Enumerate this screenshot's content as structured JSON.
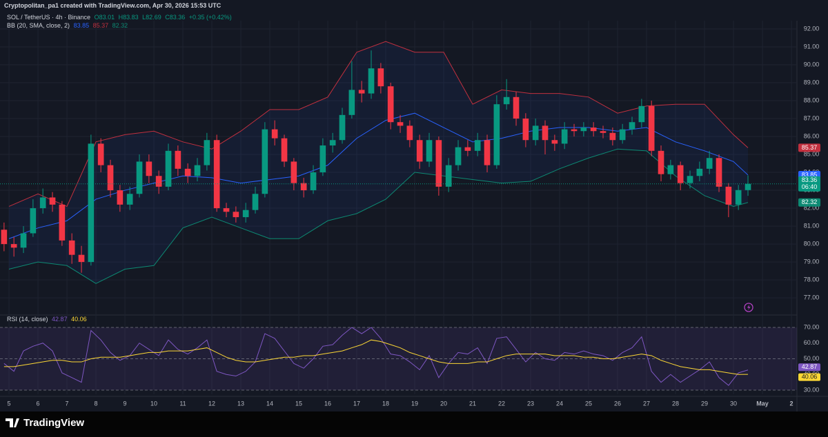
{
  "header": {
    "credit": "Cryptopolitan_pa1 created with TradingView.com, Apr 30, 2026 15:53 UTC"
  },
  "legend": {
    "symbol": "SOL / TetherUS · 4h · Binance",
    "open": "O83.01",
    "high": "H83.83",
    "low": "L82.69",
    "close": "C83.36",
    "change": "+0.35 (+0.42%)"
  },
  "footer": {
    "brand": "TradingView"
  },
  "chart_data": [
    {
      "type": "candlestick",
      "up_color": "#089981",
      "down_color": "#f23645",
      "countdown": "06:40",
      "xlim": [
        4.69,
        32.19
      ],
      "ylim": [
        76.12,
        92.46
      ],
      "xticks": [
        5,
        6,
        7,
        8,
        9,
        10,
        11,
        12,
        13,
        14,
        15,
        16,
        17,
        18,
        19,
        20,
        21,
        22,
        23,
        24,
        25,
        26,
        27,
        28,
        29,
        30,
        {
          "value": 31,
          "label": "May"
        },
        {
          "value": 32,
          "label": "2"
        }
      ],
      "yticks": [
        {
          "value": 77,
          "label": "77.00"
        },
        {
          "value": 78,
          "label": "78.00"
        },
        {
          "value": 79,
          "label": "79.00"
        },
        {
          "value": 80,
          "label": "80.00"
        },
        {
          "value": 81,
          "label": "81.00"
        },
        {
          "value": 82,
          "label": "82.00"
        },
        {
          "value": 83,
          "label": "83.00"
        },
        {
          "value": 84,
          "label": "84.00"
        },
        {
          "value": 85,
          "label": "85.00"
        },
        {
          "value": 86,
          "label": "86.00"
        },
        {
          "value": 87,
          "label": "87.00"
        },
        {
          "value": 88,
          "label": "88.00"
        },
        {
          "value": 89,
          "label": "89.00"
        },
        {
          "value": 90,
          "label": "90.00"
        },
        {
          "value": 91,
          "label": "91.00"
        },
        {
          "value": 92,
          "label": "92.00"
        }
      ],
      "grid": true,
      "x": [
        4.83,
        5.17,
        5.5,
        5.83,
        6.17,
        6.5,
        6.83,
        7.17,
        7.5,
        7.83,
        8.17,
        8.5,
        8.83,
        9.17,
        9.5,
        9.83,
        10.17,
        10.5,
        10.83,
        11.17,
        11.5,
        11.83,
        12.17,
        12.5,
        12.83,
        13.17,
        13.5,
        13.83,
        14.17,
        14.5,
        14.83,
        15.17,
        15.5,
        15.83,
        16.17,
        16.5,
        16.83,
        17.17,
        17.5,
        17.83,
        18.17,
        18.5,
        18.83,
        19.17,
        19.5,
        19.83,
        20.17,
        20.5,
        20.83,
        21.17,
        21.5,
        21.83,
        22.17,
        22.5,
        22.83,
        23.17,
        23.5,
        23.83,
        24.17,
        24.5,
        24.83,
        25.17,
        25.5,
        25.83,
        26.17,
        26.5,
        26.83,
        27.17,
        27.5,
        27.83,
        28.17,
        28.5,
        28.83,
        29.17,
        29.5,
        29.83,
        30.17,
        30.5
      ],
      "open": [
        80.8,
        80.0,
        79.8,
        80.6,
        82.0,
        82.6,
        82.2,
        80.2,
        79.4,
        79.0,
        85.6,
        84.4,
        83.0,
        82.2,
        82.8,
        84.6,
        83.8,
        83.2,
        85.2,
        84.2,
        83.8,
        84.4,
        85.8,
        82.0,
        81.8,
        81.5,
        81.9,
        82.8,
        86.4,
        85.9,
        84.6,
        83.4,
        83.0,
        84.0,
        85.5,
        85.8,
        87.2,
        88.6,
        88.4,
        89.8,
        88.8,
        86.8,
        86.6,
        85.8,
        84.6,
        85.8,
        83.2,
        84.4,
        85.4,
        85.2,
        85.8,
        84.4,
        87.8,
        88.2,
        87.0,
        85.8,
        86.6,
        85.8,
        85.6,
        86.4,
        86.3,
        86.5,
        86.3,
        86.2,
        85.8,
        86.4,
        86.8,
        87.7,
        85.2,
        83.9,
        84.4,
        83.4,
        83.8,
        84.2,
        84.8,
        83.2,
        82.2,
        83.01
      ],
      "high": [
        81.2,
        80.4,
        81.0,
        82.5,
        83.1,
        82.9,
        82.4,
        80.6,
        79.9,
        86.1,
        85.9,
        84.7,
        83.3,
        83.2,
        85.0,
        85.0,
        84.1,
        85.6,
        85.5,
        84.5,
        84.8,
        86.2,
        86.1,
        82.3,
        82.1,
        82.3,
        83.2,
        86.8,
        86.9,
        86.1,
        84.8,
        83.7,
        84.4,
        85.9,
        86.2,
        87.6,
        90.2,
        89.1,
        90.8,
        90.1,
        89.0,
        87.2,
        86.9,
        86.1,
        86.2,
        86.0,
        84.8,
        85.8,
        85.8,
        86.2,
        86.1,
        88.3,
        89.2,
        88.5,
        87.3,
        87.0,
        86.9,
        86.1,
        86.8,
        86.7,
        86.8,
        86.8,
        86.6,
        86.5,
        86.7,
        87.1,
        88.1,
        88.0,
        85.5,
        84.7,
        84.6,
        84.1,
        84.6,
        85.2,
        85.0,
        83.4,
        83.3,
        83.83
      ],
      "low": [
        79.6,
        79.3,
        79.5,
        80.4,
        81.7,
        81.8,
        79.9,
        78.9,
        78.4,
        78.8,
        84.0,
        82.6,
        81.8,
        81.9,
        82.6,
        83.4,
        82.8,
        83.0,
        83.8,
        83.4,
        83.5,
        84.1,
        81.8,
        81.5,
        81.2,
        81.2,
        81.7,
        82.6,
        85.5,
        84.3,
        83.0,
        82.6,
        82.8,
        83.8,
        85.1,
        85.6,
        87.0,
        87.9,
        88.1,
        88.4,
        86.4,
        86.2,
        85.4,
        84.2,
        84.3,
        82.7,
        82.9,
        84.1,
        84.9,
        84.9,
        84.0,
        84.2,
        87.5,
        86.6,
        85.4,
        85.5,
        85.0,
        85.2,
        85.3,
        86.0,
        86.0,
        86.0,
        85.9,
        85.5,
        85.6,
        86.1,
        86.5,
        84.9,
        83.5,
        83.6,
        83.0,
        83.1,
        83.5,
        83.9,
        82.9,
        81.5,
        81.9,
        82.69
      ],
      "close": [
        80.0,
        79.8,
        80.6,
        82.0,
        82.6,
        82.2,
        80.2,
        79.4,
        79.0,
        85.6,
        84.4,
        83.0,
        82.2,
        82.8,
        84.6,
        83.8,
        83.2,
        85.2,
        84.2,
        83.8,
        84.4,
        85.8,
        82.0,
        81.8,
        81.5,
        81.9,
        82.8,
        86.4,
        85.9,
        84.6,
        83.4,
        83.0,
        84.0,
        85.5,
        85.8,
        87.2,
        88.6,
        88.4,
        89.8,
        88.8,
        86.8,
        86.6,
        85.8,
        84.6,
        85.8,
        83.2,
        84.4,
        85.4,
        85.2,
        85.8,
        84.4,
        87.8,
        88.2,
        87.0,
        85.8,
        86.6,
        85.8,
        85.6,
        86.4,
        86.3,
        86.5,
        86.3,
        86.2,
        85.8,
        86.4,
        86.8,
        87.7,
        85.2,
        83.9,
        84.4,
        83.4,
        83.8,
        84.2,
        84.8,
        83.2,
        82.2,
        83.01,
        83.36
      ],
      "bands": {
        "label": "BB (20, SMA, close, 2)",
        "upper_color": "#c2303f",
        "middle_color": "#2962ff",
        "lower_color": "#0d8a73",
        "fill": "rgba(41,98,255,0.07)",
        "x": [
          5,
          6,
          7,
          8,
          9,
          10,
          11,
          12,
          13,
          14,
          15,
          16,
          17,
          18,
          19,
          20,
          21,
          22,
          23,
          24,
          25,
          26,
          27,
          28,
          29,
          30,
          30.5
        ],
        "upper": [
          82.1,
          82.8,
          82.1,
          85.7,
          86.1,
          86.3,
          85.7,
          85.3,
          86.3,
          87.5,
          87.5,
          88.2,
          90.7,
          91.3,
          90.7,
          90.7,
          87.8,
          88.6,
          88.4,
          88.4,
          88.2,
          87.3,
          87.7,
          87.8,
          87.8,
          86.1,
          85.37
        ],
        "middle": [
          80.3,
          80.9,
          81.3,
          82.5,
          83.0,
          83.4,
          83.8,
          83.7,
          83.4,
          83.6,
          83.8,
          84.4,
          85.9,
          86.9,
          87.3,
          86.5,
          85.7,
          85.9,
          86.3,
          86.5,
          86.5,
          86.3,
          86.5,
          85.7,
          85.2,
          84.6,
          83.85
        ],
        "lower": [
          78.6,
          79.0,
          78.8,
          77.8,
          78.6,
          78.8,
          80.9,
          81.5,
          80.9,
          80.3,
          80.3,
          81.3,
          81.7,
          82.5,
          84.0,
          83.8,
          83.6,
          83.4,
          83.5,
          84.2,
          84.8,
          85.3,
          85.2,
          83.8,
          82.7,
          82.1,
          82.32
        ]
      }
    },
    {
      "type": "line",
      "title": "RSI (14, close)",
      "xlim": [
        4.69,
        32.19
      ],
      "ylim": [
        27.36,
        77.47
      ],
      "yticks": [
        {
          "value": 30,
          "label": "30.00"
        },
        {
          "value": 40,
          "label": "40.00"
        },
        {
          "value": 50,
          "label": "50.00"
        },
        {
          "value": 60,
          "label": "60.00"
        },
        {
          "value": 70,
          "label": "70.00"
        }
      ],
      "levels": [
        30,
        50,
        70
      ],
      "band_fill": "rgba(126,87,194,0.13)",
      "x": [
        4.83,
        5.17,
        5.5,
        5.83,
        6.17,
        6.5,
        6.83,
        7.17,
        7.5,
        7.83,
        8.17,
        8.5,
        8.83,
        9.17,
        9.5,
        9.83,
        10.17,
        10.5,
        10.83,
        11.17,
        11.5,
        11.83,
        12.17,
        12.5,
        12.83,
        13.17,
        13.5,
        13.83,
        14.17,
        14.5,
        14.83,
        15.17,
        15.5,
        15.83,
        16.17,
        16.5,
        16.83,
        17.17,
        17.5,
        17.83,
        18.17,
        18.5,
        18.83,
        19.17,
        19.5,
        19.83,
        20.17,
        20.5,
        20.83,
        21.17,
        21.5,
        21.83,
        22.17,
        22.5,
        22.83,
        23.17,
        23.5,
        23.83,
        24.17,
        24.5,
        24.83,
        25.17,
        25.5,
        25.83,
        26.17,
        26.5,
        26.83,
        27.17,
        27.5,
        27.83,
        28.17,
        28.5,
        28.83,
        29.17,
        29.5,
        29.83,
        30.17,
        30.5
      ],
      "series": [
        {
          "color": "#7e57c2",
          "text_color": "#ffffff",
          "values": [
            47,
            42,
            55,
            58,
            60,
            55,
            41,
            38,
            35,
            68,
            62,
            54,
            49,
            52,
            60,
            56,
            52,
            62,
            56,
            53,
            57,
            62,
            42,
            40,
            39,
            42,
            48,
            66,
            63,
            55,
            47,
            44,
            50,
            58,
            59,
            65,
            70,
            66,
            70,
            63,
            53,
            52,
            48,
            43,
            52,
            38,
            47,
            54,
            53,
            57,
            47,
            63,
            64,
            56,
            48,
            54,
            50,
            49,
            54,
            53,
            55,
            53,
            52,
            49,
            54,
            57,
            64,
            42,
            35,
            40,
            35,
            39,
            43,
            48,
            38,
            33,
            41,
            42.87
          ]
        },
        {
          "color": "#fdd835",
          "text_color": "#131722",
          "values": [
            45,
            45,
            46,
            47,
            48,
            49,
            49,
            48,
            48,
            50,
            51,
            51,
            51,
            52,
            53,
            54,
            54,
            55,
            55,
            55,
            56,
            57,
            54,
            51,
            49,
            48,
            48,
            49,
            50,
            51,
            51,
            52,
            52,
            53,
            54,
            55,
            57,
            59,
            62,
            61,
            59,
            57,
            54,
            52,
            50,
            48,
            47,
            47,
            47,
            48,
            48,
            50,
            52,
            53,
            53,
            53,
            53,
            52,
            52,
            52,
            51,
            51,
            50,
            50,
            51,
            52,
            53,
            52,
            49,
            47,
            45,
            44,
            43,
            43,
            42,
            41,
            40,
            40.06
          ]
        }
      ]
    }
  ]
}
